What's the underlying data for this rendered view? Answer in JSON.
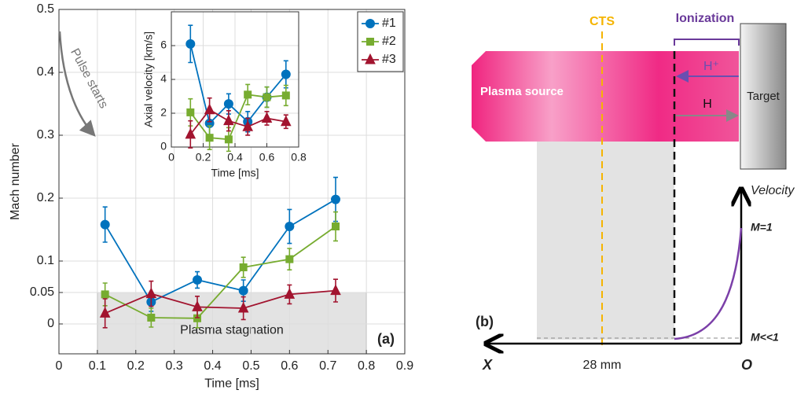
{
  "chart_data": {
    "type": "line",
    "xlabel": "Time [ms]",
    "ylabel": "Mach number",
    "xlim": [
      0,
      0.9
    ],
    "xticks": [
      0,
      0.1,
      0.2,
      0.3,
      0.4,
      0.5,
      0.6,
      0.7,
      0.8,
      0.9
    ],
    "ylim": [
      -0.0475,
      0.5
    ],
    "yticks": [
      0,
      0.05,
      0.1,
      0.2,
      0.3,
      0.4,
      0.5
    ],
    "grid": true,
    "legend": "upper right",
    "series": [
      {
        "name": "#1",
        "color": "#0072bd",
        "marker": "circle",
        "x": [
          0.12,
          0.24,
          0.36,
          0.48,
          0.6,
          0.72
        ],
        "values": [
          0.158,
          0.035,
          0.07,
          0.053,
          0.155,
          0.198
        ],
        "errors": [
          0.028,
          0.015,
          0.013,
          0.017,
          0.027,
          0.035
        ]
      },
      {
        "name": "#2",
        "color": "#77ac30",
        "marker": "square",
        "x": [
          0.12,
          0.24,
          0.36,
          0.48,
          0.6,
          0.72
        ],
        "values": [
          0.047,
          0.01,
          0.009,
          0.09,
          0.103,
          0.155
        ],
        "errors": [
          0.018,
          0.015,
          0.015,
          0.016,
          0.017,
          0.023
        ]
      },
      {
        "name": "#3",
        "color": "#a2142f",
        "marker": "triangle",
        "x": [
          0.12,
          0.24,
          0.36,
          0.48,
          0.6,
          0.72
        ],
        "values": [
          0.017,
          0.048,
          0.027,
          0.025,
          0.047,
          0.053
        ],
        "errors": [
          0.023,
          0.02,
          0.017,
          0.018,
          0.015,
          0.018
        ]
      }
    ],
    "shaded": {
      "label": "Plasma stagnation",
      "xlim": [
        0.1,
        0.8
      ],
      "ymax": 0.05
    },
    "annotations": [
      "Pulse starts",
      "(a)"
    ],
    "inset": {
      "xlabel": "Time [ms]",
      "ylabel": "Axial velocity [km/s]",
      "xlim": [
        0,
        0.8
      ],
      "xticks": [
        0,
        0.2,
        0.4,
        0.6,
        0.8
      ],
      "ylim": [
        0,
        8
      ],
      "yticks": [
        0,
        2,
        4,
        6
      ],
      "grid": true,
      "series": [
        {
          "color": "#0072bd",
          "marker": "circle",
          "x": [
            0.12,
            0.24,
            0.36,
            0.48,
            0.6,
            0.72
          ],
          "values": [
            6.1,
            1.4,
            2.55,
            1.5,
            2.95,
            4.3
          ],
          "errors": [
            1.1,
            0.7,
            0.6,
            0.6,
            0.6,
            0.8
          ]
        },
        {
          "color": "#77ac30",
          "marker": "square",
          "x": [
            0.12,
            0.24,
            0.36,
            0.48,
            0.6,
            0.72
          ],
          "values": [
            2.05,
            0.55,
            0.45,
            3.1,
            2.95,
            3.05
          ],
          "errors": [
            0.8,
            0.7,
            0.7,
            0.6,
            0.6,
            0.6
          ]
        },
        {
          "color": "#a2142f",
          "marker": "triangle",
          "x": [
            0.12,
            0.24,
            0.36,
            0.48,
            0.6,
            0.72
          ],
          "values": [
            0.75,
            2.2,
            1.55,
            1.2,
            1.7,
            1.5
          ],
          "errors": [
            0.8,
            0.7,
            0.6,
            0.5,
            0.4,
            0.4
          ]
        }
      ]
    }
  },
  "diagram": {
    "cts": "CTS",
    "ionization": "Ionization",
    "h_plus": "H⁺",
    "h": "H",
    "source": "Plasma source",
    "target": "Target",
    "velocity": "Velocity",
    "m1": "M=1",
    "m_low": "M<<1",
    "panel": "(b)",
    "x_axis": "X",
    "distance": "28 mm",
    "origin": "O"
  }
}
